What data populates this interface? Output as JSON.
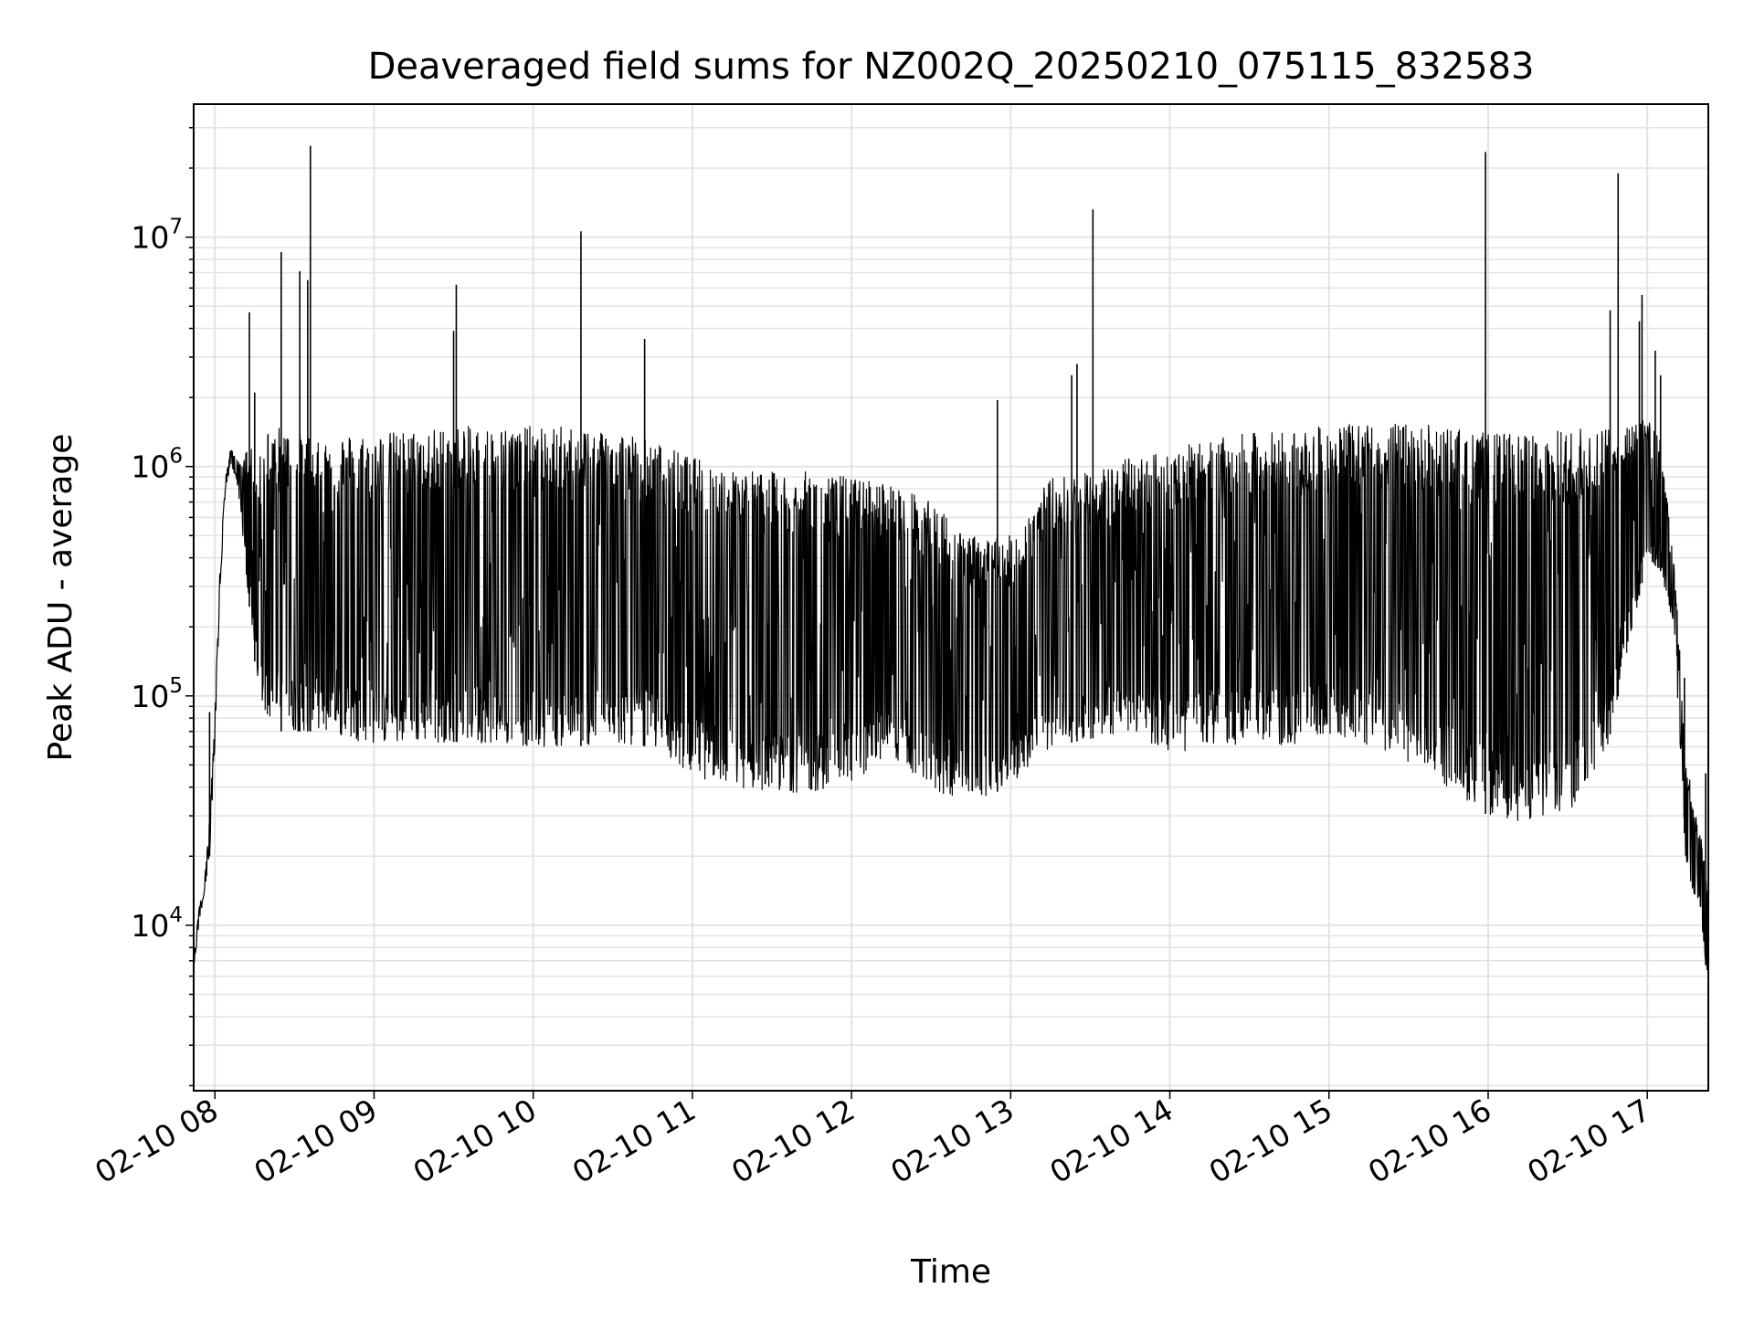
{
  "chart_data": {
    "type": "line",
    "title": "Deaveraged field sums for NZ002Q_20250210_075115_832583",
    "xlabel": "Time",
    "ylabel": "Peak ADU - average",
    "y_scale": "log",
    "xlim": [
      "2025-02-10 07:52",
      "2025-02-10 17:23"
    ],
    "ylim": [
      1900,
      38000000
    ],
    "x_tick_labels": [
      "02-10 08",
      "02-10 09",
      "02-10 10",
      "02-10 11",
      "02-10 12",
      "02-10 13",
      "02-10 14",
      "02-10 15",
      "02-10 16",
      "02-10 17"
    ],
    "x_tick_times": [
      "2025-02-10 08:00",
      "2025-02-10 09:00",
      "2025-02-10 10:00",
      "2025-02-10 11:00",
      "2025-02-10 12:00",
      "2025-02-10 13:00",
      "2025-02-10 14:00",
      "2025-02-10 15:00",
      "2025-02-10 16:00",
      "2025-02-10 17:00"
    ],
    "y_ticks": [
      {
        "value": 10000,
        "base": "10",
        "exp": "4"
      },
      {
        "value": 100000,
        "base": "10",
        "exp": "5"
      },
      {
        "value": 1000000,
        "base": "10",
        "exp": "6"
      },
      {
        "value": 10000000,
        "base": "10",
        "exp": "7"
      }
    ],
    "grid": true,
    "line_color": "#000000",
    "series": [
      {
        "x": [
          "2025-02-10 07:52",
          "2025-02-10 07:54",
          "2025-02-10 07:56",
          "2025-02-10 07:58",
          "2025-02-10 08:00",
          "2025-02-10 08:02",
          "2025-02-10 08:04",
          "2025-02-10 08:06",
          "2025-02-10 08:08",
          "2025-02-10 08:10",
          "2025-02-10 08:12",
          "2025-02-10 08:14",
          "2025-02-10 08:16",
          "2025-02-10 08:20",
          "2025-02-10 08:25",
          "2025-02-10 08:30",
          "2025-02-10 08:40",
          "2025-02-10 08:50",
          "2025-02-10 09:00",
          "2025-02-10 09:15",
          "2025-02-10 09:30",
          "2025-02-10 09:45",
          "2025-02-10 10:00",
          "2025-02-10 10:15",
          "2025-02-10 10:30",
          "2025-02-10 10:45",
          "2025-02-10 11:00",
          "2025-02-10 11:15",
          "2025-02-10 11:30",
          "2025-02-10 11:45",
          "2025-02-10 12:00",
          "2025-02-10 12:15",
          "2025-02-10 12:30",
          "2025-02-10 12:45",
          "2025-02-10 13:00",
          "2025-02-10 13:15",
          "2025-02-10 13:30",
          "2025-02-10 13:45",
          "2025-02-10 14:00",
          "2025-02-10 14:15",
          "2025-02-10 14:30",
          "2025-02-10 14:45",
          "2025-02-10 15:00",
          "2025-02-10 15:15",
          "2025-02-10 15:30",
          "2025-02-10 15:45",
          "2025-02-10 16:00",
          "2025-02-10 16:15",
          "2025-02-10 16:30",
          "2025-02-10 16:45",
          "2025-02-10 17:00",
          "2025-02-10 17:05",
          "2025-02-10 17:10",
          "2025-02-10 17:15",
          "2025-02-10 17:20",
          "2025-02-10 17:23"
        ],
        "y_high": [
          7000,
          12000,
          15000,
          30000,
          80000,
          400000,
          900000,
          1200000,
          1100000,
          1000000,
          1200000,
          1300000,
          1000000,
          1500000,
          1500000,
          1400000,
          1400000,
          1400000,
          1400000,
          1450000,
          1500000,
          1500000,
          1500000,
          1500000,
          1500000,
          1300000,
          1100000,
          1000000,
          950000,
          950000,
          900000,
          850000,
          700000,
          500000,
          500000,
          900000,
          950000,
          1100000,
          1200000,
          1300000,
          1400000,
          1450000,
          1500000,
          1550000,
          1550000,
          1500000,
          1400000,
          1400000,
          1450000,
          1500000,
          1700000,
          1300000,
          400000,
          50000,
          25000,
          15000
        ],
        "y_low": [
          6500,
          10000,
          14000,
          20000,
          60000,
          300000,
          800000,
          1000000,
          900000,
          600000,
          300000,
          200000,
          100000,
          80000,
          70000,
          70000,
          70000,
          65000,
          62000,
          62000,
          63000,
          62000,
          60000,
          60000,
          62000,
          60000,
          45000,
          40000,
          38000,
          38000,
          42000,
          55000,
          38000,
          35000,
          40000,
          60000,
          65000,
          70000,
          55000,
          60000,
          62000,
          60000,
          65000,
          60000,
          50000,
          40000,
          30000,
          28000,
          30000,
          60000,
          400000,
          350000,
          200000,
          15000,
          12000,
          5000
        ]
      }
    ],
    "spikes": [
      {
        "x": "2025-02-10 07:58",
        "y": 85000
      },
      {
        "x": "2025-02-10 08:13",
        "y": 4700000
      },
      {
        "x": "2025-02-10 08:15",
        "y": 2100000
      },
      {
        "x": "2025-02-10 08:25",
        "y": 8600000
      },
      {
        "x": "2025-02-10 08:32",
        "y": 7100000
      },
      {
        "x": "2025-02-10 08:35",
        "y": 6500000
      },
      {
        "x": "2025-02-10 08:36",
        "y": 25000000
      },
      {
        "x": "2025-02-10 09:30",
        "y": 3900000
      },
      {
        "x": "2025-02-10 09:31",
        "y": 6200000
      },
      {
        "x": "2025-02-10 10:18",
        "y": 10600000
      },
      {
        "x": "2025-02-10 10:42",
        "y": 3600000
      },
      {
        "x": "2025-02-10 12:55",
        "y": 1950000
      },
      {
        "x": "2025-02-10 13:23",
        "y": 2500000
      },
      {
        "x": "2025-02-10 13:25",
        "y": 2800000
      },
      {
        "x": "2025-02-10 13:31",
        "y": 13200000
      },
      {
        "x": "2025-02-10 15:59",
        "y": 23500000
      },
      {
        "x": "2025-02-10 16:46",
        "y": 4800000
      },
      {
        "x": "2025-02-10 16:49",
        "y": 19000000
      },
      {
        "x": "2025-02-10 16:57",
        "y": 4300000
      },
      {
        "x": "2025-02-10 16:58",
        "y": 5600000
      },
      {
        "x": "2025-02-10 17:03",
        "y": 3200000
      },
      {
        "x": "2025-02-10 17:05",
        "y": 2500000
      },
      {
        "x": "2025-02-10 17:14",
        "y": 120000
      },
      {
        "x": "2025-02-10 17:22",
        "y": 46000
      }
    ]
  }
}
